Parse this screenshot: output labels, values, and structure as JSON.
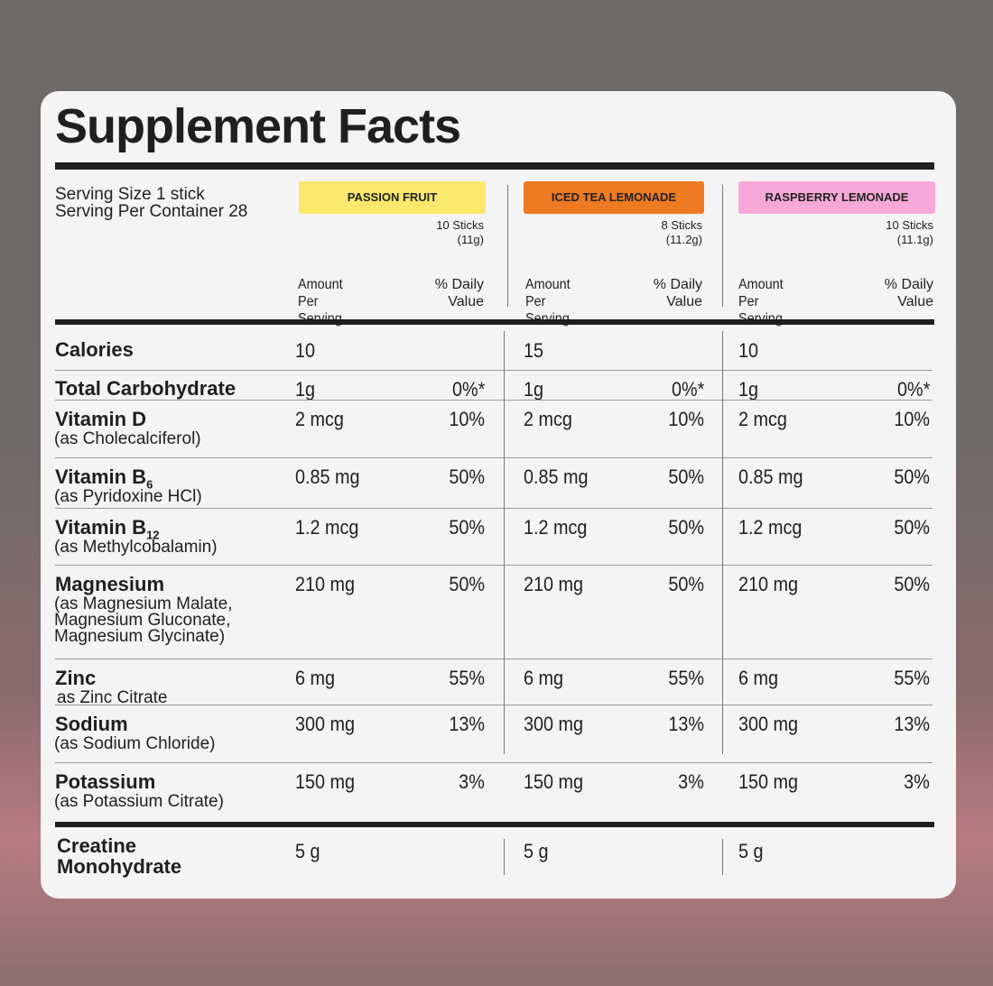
{
  "title": "Supplement Facts",
  "serving": [
    "Serving Size 1 stick",
    "Serving Per Container 28"
  ],
  "flavors": [
    {
      "name": "PASSION FRUIT",
      "color": "#f9e86c",
      "count": "10 Sticks",
      "weight": "(11g)",
      "amount_header": "Amount Per Serving",
      "dv_header": "% Daily Value"
    },
    {
      "name": "ICED TEA LEMONADE",
      "color": "#ee7a22",
      "count": "8 Sticks",
      "weight": "(11.2g)",
      "amount_header": "Amount Per Serving",
      "dv_header": "% Daily Value"
    },
    {
      "name": "RASPBERRY LEMONADE",
      "color": "#f7a8d9",
      "count": "10 Sticks",
      "weight": "(11.1g)",
      "amount_header": "Amount Per Serving",
      "dv_header": "% Daily Value"
    }
  ],
  "rows": [
    {
      "name": "Calories",
      "amounts": [
        "10",
        "15",
        "10"
      ]
    },
    {
      "name": "Total Carbohydrate",
      "amounts": [
        "1g",
        "1g",
        "1g"
      ],
      "dv": [
        "0%*",
        "0%*",
        "0%*"
      ]
    },
    {
      "name": "Vitamin D",
      "detail": [
        "(as Cholecalciferol)"
      ],
      "amounts": [
        "2 mcg",
        "2 mcg",
        "2 mcg"
      ],
      "dv": [
        "10%",
        "10%",
        "10%"
      ]
    },
    {
      "name": "Vitamin B",
      "subscript": "6",
      "detail": [
        "(as Pyridoxine HCl)"
      ],
      "amounts": [
        "0.85 mg",
        "0.85 mg",
        "0.85 mg"
      ],
      "dv": [
        "50%",
        "50%",
        "50%"
      ]
    },
    {
      "name": "Vitamin B",
      "subscript": "12",
      "detail": [
        "(as Methylcobalamin)"
      ],
      "amounts": [
        "1.2 mcg",
        "1.2 mcg",
        "1.2 mcg"
      ],
      "dv": [
        "50%",
        "50%",
        "50%"
      ]
    },
    {
      "name": "Magnesium",
      "detail": [
        "(as Magnesium Malate,",
        "Magnesium Gluconate,",
        "Magnesium Glycinate)"
      ],
      "amounts": [
        "210 mg",
        "210 mg",
        "210 mg"
      ],
      "dv": [
        "50%",
        "50%",
        "50%"
      ]
    },
    {
      "name": "Zinc",
      "detail": [
        "as Zinc Citrate"
      ],
      "amounts": [
        "6 mg",
        "6 mg",
        "6 mg"
      ],
      "dv": [
        "55%",
        "55%",
        "55%"
      ]
    },
    {
      "name": "Sodium",
      "detail": [
        "(as Sodium Chloride)"
      ],
      "amounts": [
        "300 mg",
        "300 mg",
        "300 mg"
      ],
      "dv": [
        "13%",
        "13%",
        "13%"
      ]
    },
    {
      "name": "Potassium",
      "detail": [
        "(as Potassium Citrate)"
      ],
      "amounts": [
        "150 mg",
        "150 mg",
        "150 mg"
      ],
      "dv": [
        "3%",
        "3%",
        "3%"
      ]
    },
    {
      "name": "Creatine Monohydrate",
      "amounts": [
        "5 g",
        "5 g",
        "5 g"
      ]
    }
  ]
}
